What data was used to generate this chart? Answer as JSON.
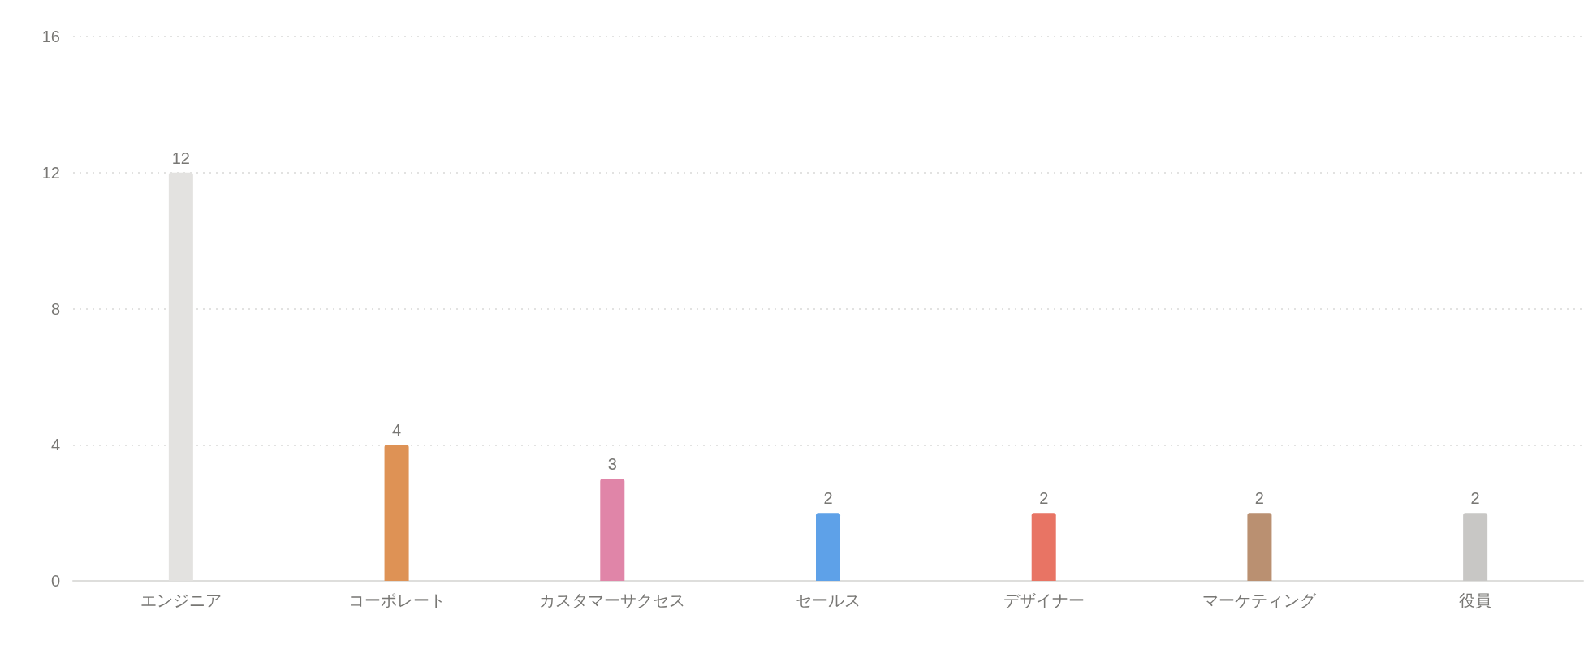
{
  "chart_data": {
    "type": "bar",
    "categories": [
      "エンジニア",
      "コーポレート",
      "カスタマーサクセス",
      "セールス",
      "デザイナー",
      "マーケティング",
      "役員"
    ],
    "values": [
      12,
      4,
      3,
      2,
      2,
      2,
      2
    ],
    "colors": [
      "#e3e2e0",
      "#de9255",
      "#e085a8",
      "#5ea1e8",
      "#e87464",
      "#ba9071",
      "#c8c7c5"
    ],
    "ylim": [
      0,
      16
    ],
    "yticks": [
      0,
      4,
      8,
      12,
      16
    ],
    "grid": "y",
    "data_labels": true
  }
}
